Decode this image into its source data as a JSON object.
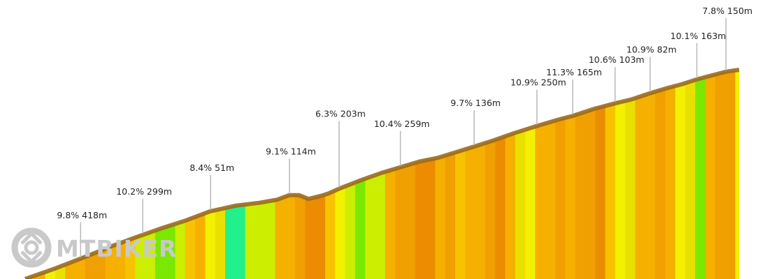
{
  "chart_data": {
    "type": "area",
    "title": "",
    "xlabel": "",
    "ylabel": "",
    "segment_labels": [
      {
        "grade": "9.8%",
        "length": "418m",
        "x_frac": 0.076
      },
      {
        "grade": "10.2%",
        "length": "299m",
        "x_frac": 0.161
      },
      {
        "grade": "8.4%",
        "length": "51m",
        "x_frac": 0.254
      },
      {
        "grade": "9.1%",
        "length": "114m",
        "x_frac": 0.362
      },
      {
        "grade": "6.3%",
        "length": "203m",
        "x_frac": 0.43
      },
      {
        "grade": "10.4%",
        "length": "259m",
        "x_frac": 0.514
      },
      {
        "grade": "9.7%",
        "length": "136m",
        "x_frac": 0.615
      },
      {
        "grade": "10.9%",
        "length": "250m",
        "x_frac": 0.701
      },
      {
        "grade": "11.3%",
        "length": "165m",
        "x_frac": 0.75
      },
      {
        "grade": "10.6%",
        "length": "103m",
        "x_frac": 0.808
      },
      {
        "grade": "10.9%",
        "length": "82m",
        "x_frac": 0.856
      },
      {
        "grade": "10.1%",
        "length": "163m",
        "x_frac": 0.92
      },
      {
        "grade": "7.8%",
        "length": "150m",
        "x_frac": 0.96
      }
    ],
    "profile": {
      "x_frac": [
        0,
        0.041,
        0.082,
        0.118,
        0.15,
        0.185,
        0.22,
        0.253,
        0.288,
        0.321,
        0.345,
        0.362,
        0.375,
        0.388,
        0.405,
        0.415,
        0.43,
        0.46,
        0.49,
        0.514,
        0.54,
        0.565,
        0.59,
        0.615,
        0.64,
        0.67,
        0.701,
        0.73,
        0.75,
        0.78,
        0.808,
        0.83,
        0.856,
        0.88,
        0.9,
        0.92,
        0.945,
        0.96,
        0.978
      ],
      "h_frac": [
        0,
        0.055,
        0.115,
        0.17,
        0.215,
        0.262,
        0.305,
        0.352,
        0.382,
        0.397,
        0.413,
        0.437,
        0.437,
        0.417,
        0.433,
        0.445,
        0.47,
        0.515,
        0.555,
        0.582,
        0.612,
        0.631,
        0.66,
        0.69,
        0.72,
        0.76,
        0.797,
        0.83,
        0.85,
        0.887,
        0.915,
        0.935,
        0.968,
        0.995,
        1.015,
        1.04,
        1.065,
        1.08,
        1.09
      ]
    },
    "grade_band_colors": [
      "#f5b000",
      "#f0a000",
      "#ec8c00",
      "#f7c300",
      "#e9e000",
      "#f3f000",
      "#ccee00",
      "#7ae800",
      "#22f08c"
    ]
  },
  "watermark": {
    "text": "MTBIKER"
  }
}
